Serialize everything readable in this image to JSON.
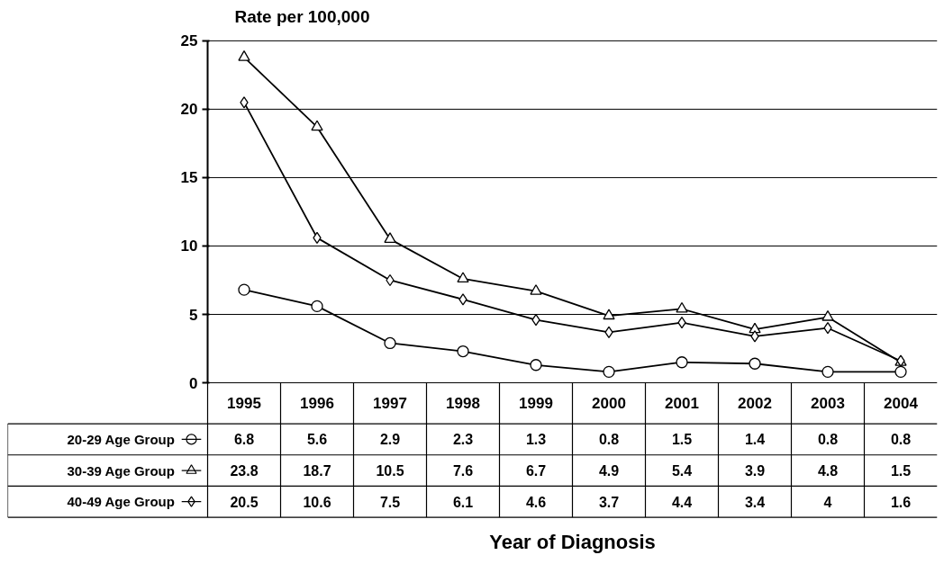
{
  "chart_data": {
    "type": "line",
    "ylabel": "Rate per 100,000",
    "annotations": [
      "Year of Diagnosis"
    ],
    "categories": [
      "1995",
      "1996",
      "1997",
      "1998",
      "1999",
      "2000",
      "2001",
      "2002",
      "2003",
      "2004"
    ],
    "series": [
      {
        "name": "20-29 Age Group",
        "color": "#000000",
        "marker": "circle",
        "values": [
          6.8,
          5.6,
          2.9,
          2.3,
          1.3,
          0.8,
          1.5,
          1.4,
          0.8,
          0.8
        ]
      },
      {
        "name": "30-39 Age Group",
        "color": "#000000",
        "marker": "triangle",
        "values": [
          23.8,
          18.7,
          10.5,
          7.6,
          6.7,
          4.9,
          5.4,
          3.9,
          4.8,
          1.5
        ]
      },
      {
        "name": "40-49 Age Group",
        "color": "#000000",
        "marker": "diamond",
        "values": [
          20.5,
          10.6,
          7.5,
          6.1,
          4.6,
          3.7,
          4.4,
          3.4,
          4,
          1.6
        ]
      }
    ],
    "ylim": [
      0,
      25
    ],
    "yticks": [
      0,
      5,
      10,
      15,
      20,
      25
    ],
    "grid": "y",
    "legend": "bottom left",
    "data_labels": true,
    "line_style": "solid"
  }
}
